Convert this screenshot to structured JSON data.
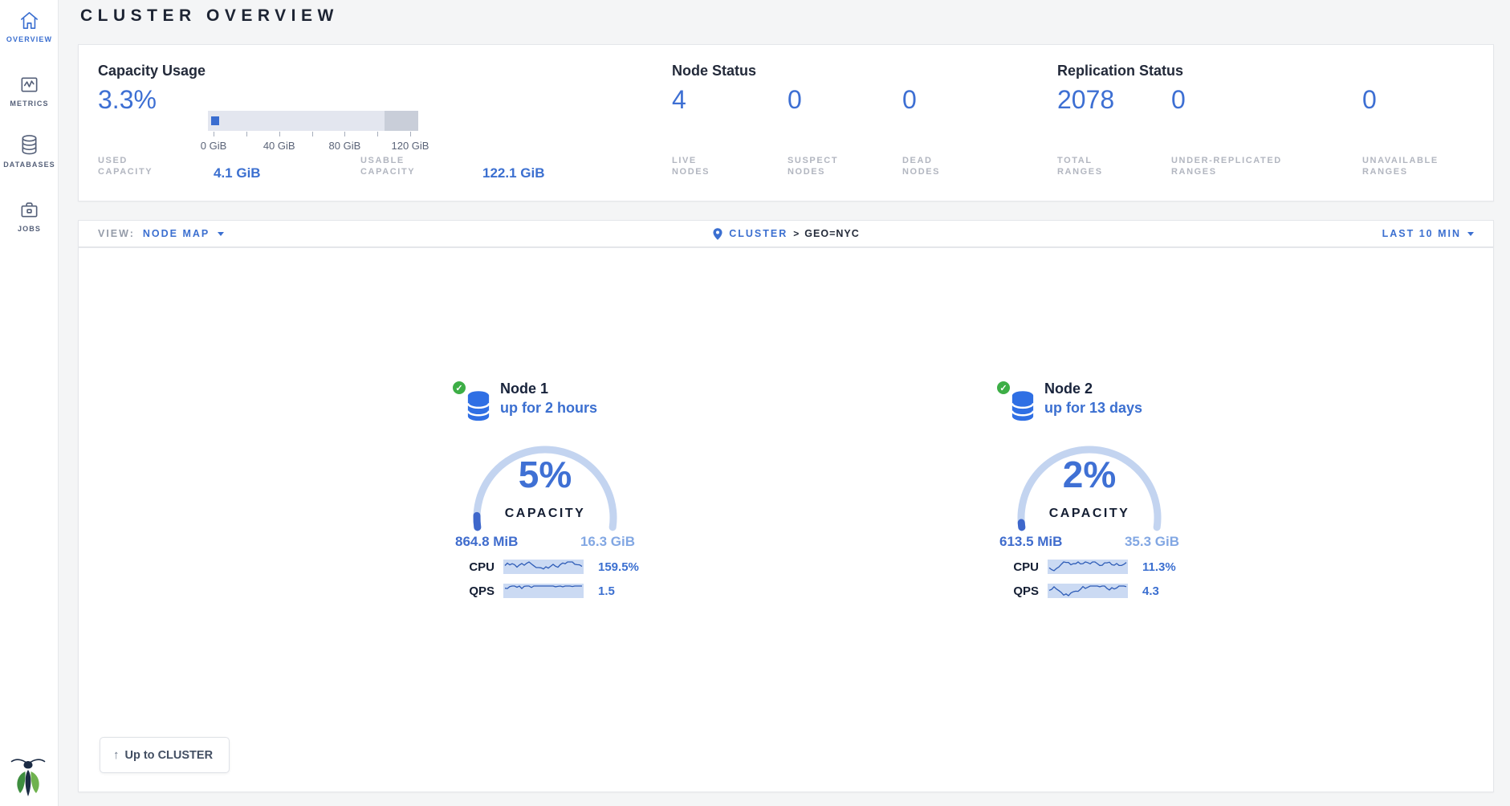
{
  "page_title": "CLUSTER OVERVIEW",
  "colors": {
    "accent_blue": "#3b6fd0",
    "stat_blue": "#3d6fd3",
    "label_gray": "#b2b6c0",
    "gauge_track": "#c3d4f0",
    "gauge_used": "#3e67cb",
    "badge_green": "#3dae46",
    "page_bg": "#f4f5f6"
  },
  "sidebar": {
    "items": [
      {
        "label": "OVERVIEW",
        "icon": "home-icon",
        "active": true
      },
      {
        "label": "METRICS",
        "icon": "metrics-icon",
        "active": false
      },
      {
        "label": "DATABASES",
        "icon": "database-icon",
        "active": false
      },
      {
        "label": "JOBS",
        "icon": "briefcase-icon",
        "active": false
      }
    ]
  },
  "summary": {
    "capacity": {
      "title": "Capacity Usage",
      "percent": "3.3%",
      "tick_labels": [
        "0 GiB",
        "40 GiB",
        "80 GiB",
        "120 GiB"
      ],
      "used_label": "USED CAPACITY",
      "used_value": "4.1 GiB",
      "usable_label": "USABLE CAPACITY",
      "usable_value": "122.1 GiB"
    },
    "node_status": {
      "title": "Node Status",
      "stats": [
        {
          "value": "4",
          "label": "LIVE NODES"
        },
        {
          "value": "0",
          "label": "SUSPECT NODES"
        },
        {
          "value": "0",
          "label": "DEAD NODES"
        }
      ]
    },
    "replication": {
      "title": "Replication Status",
      "stats": [
        {
          "value": "2078",
          "label": "TOTAL RANGES"
        },
        {
          "value": "0",
          "label": "UNDER-REPLICATED RANGES"
        },
        {
          "value": "0",
          "label": "UNAVAILABLE RANGES"
        }
      ]
    }
  },
  "viewbar": {
    "view_label": "VIEW:",
    "view_value": "NODE MAP",
    "breadcrumb": {
      "root": "CLUSTER",
      "separator": ">",
      "current": "GEO=NYC"
    },
    "time_range": "LAST 10 MIN"
  },
  "nodes": [
    {
      "name": "Node 1",
      "uptime": "up for 2 hours",
      "capacity_percent": "5%",
      "capacity_percent_value": 5,
      "capacity_label": "CAPACITY",
      "used": "864.8 MiB",
      "total": "16.3 GiB",
      "cpu_label": "CPU",
      "cpu_value": "159.5%",
      "qps_label": "QPS",
      "qps_value": "1.5"
    },
    {
      "name": "Node 2",
      "uptime": "up for 13 days",
      "capacity_percent": "2%",
      "capacity_percent_value": 2,
      "capacity_label": "CAPACITY",
      "used": "613.5 MiB",
      "total": "35.3 GiB",
      "cpu_label": "CPU",
      "cpu_value": "11.3%",
      "qps_label": "QPS",
      "qps_value": "4.3"
    }
  ],
  "up_button_label": "Up to CLUSTER"
}
